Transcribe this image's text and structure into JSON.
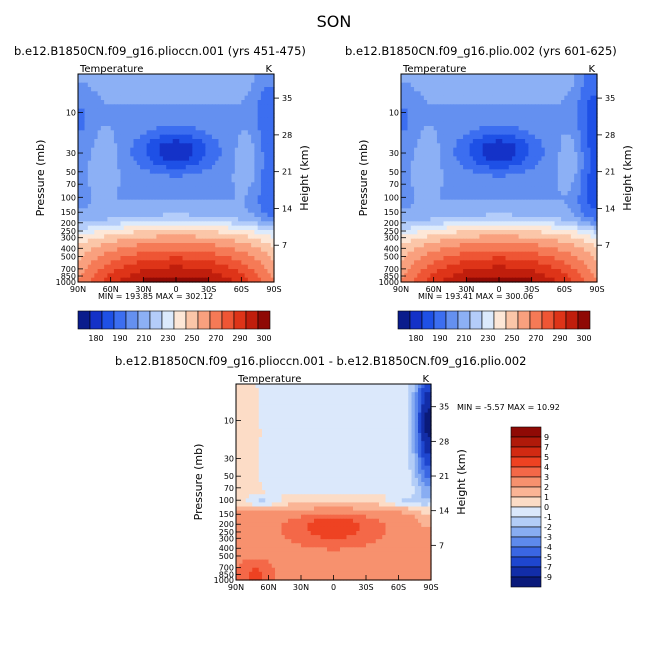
{
  "season": "SON",
  "panels": [
    {
      "title": "b.e12.B1850CN.f09_g16.plioccn.001 (yrs 451-475)",
      "var_label": "Temperature",
      "units": "K",
      "ylabel_left": "Pressure (mb)",
      "ylabel_right": "Height (km)",
      "stats": "MIN = 193.85   MAX = 302.12"
    },
    {
      "title": "b.e12.B1850CN.f09_g16.plio.002 (yrs 601-625)",
      "var_label": "Temperature",
      "units": "K",
      "ylabel_left": "Pressure (mb)",
      "ylabel_right": "Height (km)",
      "stats": "MIN = 193.41   MAX = 300.06"
    },
    {
      "title": "b.e12.B1850CN.f09_g16.plioccn.001 - b.e12.B1850CN.f09_g16.plio.002",
      "var_label": "Temperature",
      "units": "K",
      "ylabel_left": "Pressure (mb)",
      "ylabel_right": "Height (km)",
      "stats": "MIN =   -5.57   MAX =   10.92"
    }
  ],
  "chart_data": [
    {
      "type": "heatmap",
      "title": "b.e12.B1850CN.f09_g16.plioccn.001 (yrs 451-475)",
      "xlabel": "",
      "ylabel": "Pressure (mb)",
      "ylabel_right": "Height (km)",
      "x_ticks": [
        "90N",
        "60N",
        "30N",
        "0",
        "30S",
        "60S",
        "90S"
      ],
      "y_ticks": [
        "10",
        "30",
        "50",
        "70",
        "100",
        "150",
        "200",
        "250",
        "300",
        "400",
        "500",
        "700",
        "850",
        "1000"
      ],
      "y_ticks_right": [
        "35",
        "28",
        "21",
        "14",
        "7"
      ],
      "colorbar_levels": [
        180,
        190,
        210,
        230,
        250,
        270,
        290,
        300
      ],
      "colorbar_labels": [
        "180",
        "190",
        "210",
        "230",
        "250",
        "270",
        "290",
        "300"
      ],
      "min": 193.85,
      "max": 302.12,
      "units": "K"
    },
    {
      "type": "heatmap",
      "title": "b.e12.B1850CN.f09_g16.plio.002 (yrs 601-625)",
      "xlabel": "",
      "ylabel": "Pressure (mb)",
      "ylabel_right": "Height (km)",
      "x_ticks": [
        "90N",
        "60N",
        "30N",
        "0",
        "30S",
        "60S",
        "90S"
      ],
      "y_ticks": [
        "10",
        "30",
        "50",
        "70",
        "100",
        "150",
        "200",
        "250",
        "300",
        "400",
        "500",
        "700",
        "850",
        "1000"
      ],
      "y_ticks_right": [
        "35",
        "28",
        "21",
        "14",
        "7"
      ],
      "colorbar_levels": [
        180,
        190,
        210,
        230,
        250,
        270,
        290,
        300
      ],
      "colorbar_labels": [
        "180",
        "190",
        "210",
        "230",
        "250",
        "270",
        "290",
        "300"
      ],
      "min": 193.41,
      "max": 300.06,
      "units": "K"
    },
    {
      "type": "heatmap",
      "title": "b.e12.B1850CN.f09_g16.plioccn.001 - b.e12.B1850CN.f09_g16.plio.002",
      "xlabel": "",
      "ylabel": "Pressure (mb)",
      "ylabel_right": "Height (km)",
      "x_ticks": [
        "90N",
        "60N",
        "30N",
        "0",
        "30S",
        "60S",
        "90S"
      ],
      "y_ticks": [
        "10",
        "30",
        "50",
        "70",
        "100",
        "150",
        "200",
        "250",
        "300",
        "400",
        "500",
        "700",
        "850",
        "1000"
      ],
      "y_ticks_right": [
        "35",
        "28",
        "21",
        "14",
        "7"
      ],
      "colorbar_levels": [
        9,
        7,
        5,
        4,
        3,
        2,
        1,
        0,
        -1,
        -2,
        -3,
        -4,
        -5,
        -7,
        -9
      ],
      "colorbar_labels": [
        "9",
        "7",
        "5",
        "4",
        "3",
        "2",
        "1",
        "0",
        "-1",
        "-2",
        "-3",
        "-4",
        "-5",
        "-7",
        "-9"
      ],
      "min": -5.57,
      "max": 10.92,
      "units": "K"
    }
  ],
  "colors": {
    "temp_scale": [
      "#0a1c8c",
      "#1432c8",
      "#1e50e6",
      "#3c6ef0",
      "#6490f0",
      "#8cb0f5",
      "#b4cdfa",
      "#dceafc",
      "#fde7d7",
      "#fbc6a8",
      "#f9a07e",
      "#f57a56",
      "#ee5534",
      "#de3418",
      "#c01e0c",
      "#8f0a05"
    ],
    "diff_scale": [
      "#8f0a05",
      "#b01a0a",
      "#d22a12",
      "#ee4222",
      "#f46848",
      "#f7916e",
      "#fab495",
      "#fcdcc6",
      "#dbe8fb",
      "#b3cdf7",
      "#88adf2",
      "#5e8aec",
      "#3a66e3",
      "#1e46cf",
      "#122da8",
      "#0a1a7a"
    ]
  }
}
